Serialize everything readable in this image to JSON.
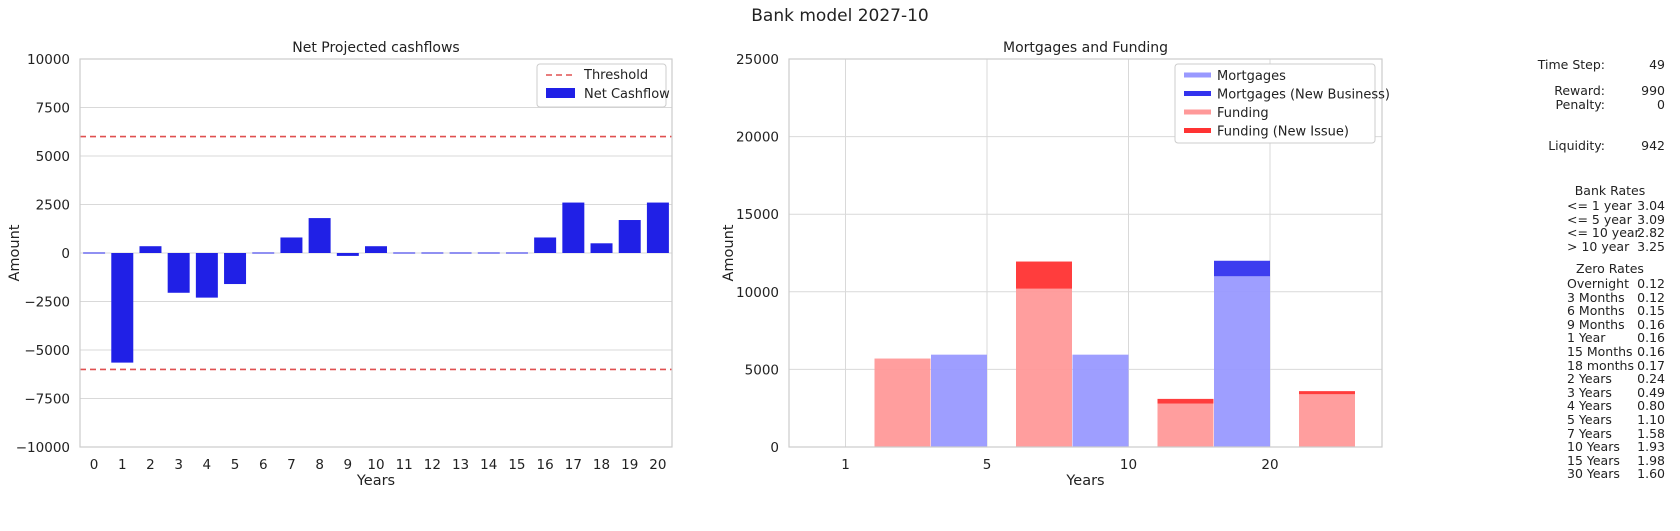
{
  "suptitle": "Bank model 2027-10",
  "chart_data": [
    {
      "type": "bar",
      "title": "Net Projected cashflows",
      "xlabel": "Years",
      "ylabel": "Amount",
      "ylim": [
        -10000,
        10000
      ],
      "yticks": [
        -10000,
        -7500,
        -5000,
        -2500,
        0,
        2500,
        5000,
        7500,
        10000
      ],
      "ytick_labels": [
        "−10000",
        "−7500",
        "−5000",
        "−2500",
        "0",
        "2500",
        "5000",
        "7500",
        "10000"
      ],
      "categories": [
        "0",
        "1",
        "2",
        "3",
        "4",
        "5",
        "6",
        "7",
        "8",
        "9",
        "10",
        "11",
        "12",
        "13",
        "14",
        "15",
        "16",
        "17",
        "18",
        "19",
        "20"
      ],
      "series": [
        {
          "name": "Net Cashflow",
          "color": "#2020e6",
          "values": [
            0,
            -5650,
            350,
            -2050,
            -2300,
            -1600,
            0,
            800,
            1800,
            -150,
            350,
            0,
            0,
            0,
            0,
            0,
            800,
            2600,
            500,
            1700,
            2600
          ]
        }
      ],
      "thresholds": {
        "name": "Threshold",
        "color": "#e05050",
        "values": [
          6000,
          -6000
        ]
      },
      "grid": true,
      "legend_position": "top-right"
    },
    {
      "type": "bar",
      "title": "Mortgages and Funding",
      "xlabel": "Years",
      "ylabel": "Amount",
      "ylim": [
        0,
        25000
      ],
      "yticks": [
        0,
        5000,
        10000,
        15000,
        20000,
        25000
      ],
      "ytick_labels": [
        "0",
        "5000",
        "10000",
        "15000",
        "20000",
        "25000"
      ],
      "categories": [
        "1",
        "5",
        "10",
        "20"
      ],
      "series": [
        {
          "name": "Mortgages",
          "color": "#9999ff",
          "values": [
            0,
            5950,
            5950,
            11000
          ]
        },
        {
          "name": "Mortgages (New Business)",
          "color": "#3333ee",
          "values": [
            0,
            0,
            0,
            1000
          ]
        },
        {
          "name": "Funding",
          "color": "#ff9999",
          "values": [
            5700,
            10200,
            2800,
            3400
          ]
        },
        {
          "name": "Funding (New Issue)",
          "color": "#ff3333",
          "values": [
            0,
            1750,
            300,
            200
          ]
        }
      ],
      "grid": true,
      "legend_position": "top-right"
    }
  ],
  "info": {
    "time_step_label": "Time Step:",
    "time_step": "49",
    "reward_label": "Reward:",
    "reward": "990",
    "penalty_label": "Penalty:",
    "penalty": "0",
    "liquidity_label": "Liquidity:",
    "liquidity": "942",
    "bank_rates_title": "Bank Rates",
    "bank_rates": [
      {
        "label": "<= 1 year",
        "value": "3.04"
      },
      {
        "label": "<= 5 year",
        "value": "3.09"
      },
      {
        "label": "<= 10 year",
        "value": "2.82"
      },
      {
        "label": "> 10 year",
        "value": "3.25"
      }
    ],
    "zero_rates_title": "Zero Rates",
    "zero_rates": [
      {
        "label": "Overnight",
        "value": "0.12"
      },
      {
        "label": "3 Months",
        "value": "0.12"
      },
      {
        "label": "6 Months",
        "value": "0.15"
      },
      {
        "label": "9 Months",
        "value": "0.16"
      },
      {
        "label": "1 Year",
        "value": "0.16"
      },
      {
        "label": "15 Months",
        "value": "0.16"
      },
      {
        "label": "18 months",
        "value": "0.17"
      },
      {
        "label": "2 Years",
        "value": "0.24"
      },
      {
        "label": "3 Years",
        "value": "0.49"
      },
      {
        "label": "4 Years",
        "value": "0.80"
      },
      {
        "label": "5 Years",
        "value": "1.10"
      },
      {
        "label": "7 Years",
        "value": "1.58"
      },
      {
        "label": "10 Years",
        "value": "1.93"
      },
      {
        "label": "15 Years",
        "value": "1.98"
      },
      {
        "label": "30 Years",
        "value": "1.60"
      }
    ]
  }
}
